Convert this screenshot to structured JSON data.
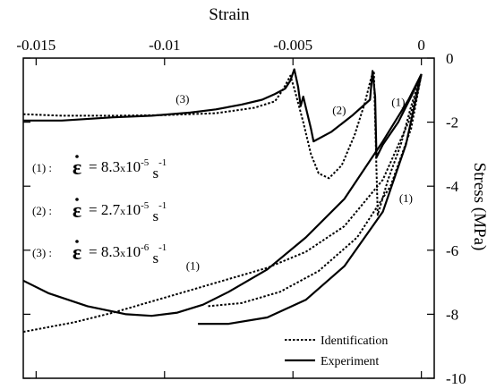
{
  "chart_data": {
    "type": "line",
    "title": "",
    "xlabel": "Strain",
    "ylabel": "Stress (MPa)",
    "xlim": [
      -0.0155,
      0.0005
    ],
    "ylim": [
      -10,
      0
    ],
    "x_ticks": [
      -0.015,
      -0.01,
      -0.005,
      0
    ],
    "x_tick_labels": [
      "-0.015",
      "-0.01",
      "-0.005",
      "0"
    ],
    "y_ticks": [
      0,
      -2,
      -4,
      -6,
      -8,
      -10
    ],
    "y_tick_labels": [
      "0",
      "-2",
      "-4",
      "-6",
      "-8",
      "-10"
    ],
    "x_axis_position": "top",
    "y_axis_position": "right",
    "grid": false,
    "legend": {
      "position": "bottom-right",
      "entries": [
        {
          "label": "Identification",
          "style": "dotted"
        },
        {
          "label": "Experiment",
          "style": "solid"
        }
      ]
    },
    "rate_labels": [
      {
        "id": "(1) :",
        "prefix": "= 8.3",
        "times": "x",
        "mantissa_exp": "10",
        "exp": "-5",
        "unit": "s",
        "unit_exp": "-1"
      },
      {
        "id": "(2) :",
        "prefix": "= 2.7",
        "times": "x",
        "mantissa_exp": "10",
        "exp": "-5",
        "unit": "s",
        "unit_exp": "-1"
      },
      {
        "id": "(3) :",
        "prefix": "= 8.3",
        "times": "x",
        "mantissa_exp": "10",
        "exp": "-6",
        "unit": "s",
        "unit_exp": "-1"
      }
    ],
    "epsilon_symbol": "ε",
    "annotations": [
      {
        "text": "(3)",
        "x": -0.0093,
        "y": -1.4
      },
      {
        "text": "(2)",
        "x": -0.0032,
        "y": -1.75
      },
      {
        "text": "(1)",
        "x": -0.0009,
        "y": -1.5
      },
      {
        "text": "(1)",
        "x": -0.0006,
        "y": -4.5
      },
      {
        "text": "(1)",
        "x": -0.0089,
        "y": -6.6
      }
    ],
    "series": [
      {
        "style": "solid",
        "points": [
          [
            -0.0155,
            -1.95
          ],
          [
            -0.014,
            -1.95
          ],
          [
            -0.012,
            -1.85
          ],
          [
            -0.0105,
            -1.8
          ],
          [
            -0.009,
            -1.7
          ],
          [
            -0.008,
            -1.6
          ],
          [
            -0.007,
            -1.45
          ],
          [
            -0.0062,
            -1.3
          ],
          [
            -0.0057,
            -1.12
          ],
          [
            -0.0053,
            -0.95
          ],
          [
            -0.0051,
            -0.7
          ],
          [
            -0.00495,
            -0.35
          ],
          [
            -0.0048,
            -0.9
          ],
          [
            -0.0047,
            -1.5
          ],
          [
            -0.0046,
            -1.2
          ],
          [
            -0.0043,
            -2.2
          ],
          [
            -0.0042,
            -2.6
          ],
          [
            -0.0035,
            -2.3
          ],
          [
            -0.0027,
            -1.8
          ],
          [
            -0.002,
            -1.3
          ],
          [
            -0.0019,
            -0.4
          ],
          [
            -0.0018,
            -1.2
          ],
          [
            -0.00175,
            -3.1
          ],
          [
            -0.0015,
            -2.7
          ],
          [
            -0.0009,
            -2.0
          ],
          [
            -0.0004,
            -1.2
          ],
          [
            0,
            -0.5
          ]
        ]
      },
      {
        "style": "dotted",
        "points": [
          [
            -0.0155,
            -1.75
          ],
          [
            -0.014,
            -1.8
          ],
          [
            -0.012,
            -1.8
          ],
          [
            -0.01,
            -1.78
          ],
          [
            -0.008,
            -1.72
          ],
          [
            -0.0065,
            -1.55
          ],
          [
            -0.0057,
            -1.35
          ],
          [
            -0.0054,
            -1.0
          ],
          [
            -0.0052,
            -0.7
          ],
          [
            -0.0051,
            -0.55
          ],
          [
            -0.00495,
            -0.95
          ],
          [
            -0.0046,
            -2.0
          ],
          [
            -0.0043,
            -3.0
          ],
          [
            -0.004,
            -3.6
          ],
          [
            -0.0036,
            -3.75
          ],
          [
            -0.0031,
            -3.35
          ],
          [
            -0.0026,
            -2.4
          ],
          [
            -0.0022,
            -1.4
          ],
          [
            -0.00195,
            -0.6
          ],
          [
            -0.00185,
            -0.4
          ],
          [
            -0.00175,
            -3.5
          ],
          [
            -0.0017,
            -4.9
          ],
          [
            -0.0013,
            -3.8
          ],
          [
            -0.0008,
            -2.7
          ],
          [
            -0.0004,
            -1.5
          ],
          [
            0,
            -0.5
          ]
        ]
      },
      {
        "style": "solid",
        "points": [
          [
            -0.0155,
            -6.95
          ],
          [
            -0.0145,
            -7.35
          ],
          [
            -0.013,
            -7.75
          ],
          [
            -0.0115,
            -8.0
          ],
          [
            -0.0105,
            -8.05
          ],
          [
            -0.0095,
            -7.95
          ],
          [
            -0.0085,
            -7.7
          ],
          [
            -0.0075,
            -7.3
          ],
          [
            -0.006,
            -6.6
          ],
          [
            -0.0045,
            -5.6
          ],
          [
            -0.003,
            -4.4
          ],
          [
            -0.0015,
            -2.6
          ],
          [
            -0.0005,
            -1.3
          ],
          [
            0,
            -0.5
          ]
        ]
      },
      {
        "style": "solid",
        "points": [
          [
            -0.0087,
            -8.3
          ],
          [
            -0.0075,
            -8.3
          ],
          [
            -0.006,
            -8.1
          ],
          [
            -0.0045,
            -7.55
          ],
          [
            -0.003,
            -6.5
          ],
          [
            -0.0015,
            -4.8
          ],
          [
            -0.0006,
            -2.7
          ],
          [
            0,
            -0.5
          ]
        ]
      },
      {
        "style": "dotted",
        "points": [
          [
            -0.0155,
            -8.55
          ],
          [
            -0.0135,
            -8.25
          ],
          [
            -0.012,
            -7.95
          ],
          [
            -0.0105,
            -7.6
          ],
          [
            -0.009,
            -7.25
          ],
          [
            -0.0075,
            -6.9
          ],
          [
            -0.006,
            -6.55
          ],
          [
            -0.0045,
            -6.05
          ],
          [
            -0.003,
            -5.25
          ],
          [
            -0.0015,
            -3.8
          ],
          [
            -0.0005,
            -2.0
          ],
          [
            0,
            -0.5
          ]
        ]
      },
      {
        "style": "dotted",
        "points": [
          [
            -0.0083,
            -7.75
          ],
          [
            -0.007,
            -7.65
          ],
          [
            -0.0055,
            -7.3
          ],
          [
            -0.004,
            -6.65
          ],
          [
            -0.0025,
            -5.6
          ],
          [
            -0.0012,
            -4.0
          ],
          [
            -0.0004,
            -2.2
          ],
          [
            0,
            -0.5
          ]
        ]
      }
    ]
  }
}
